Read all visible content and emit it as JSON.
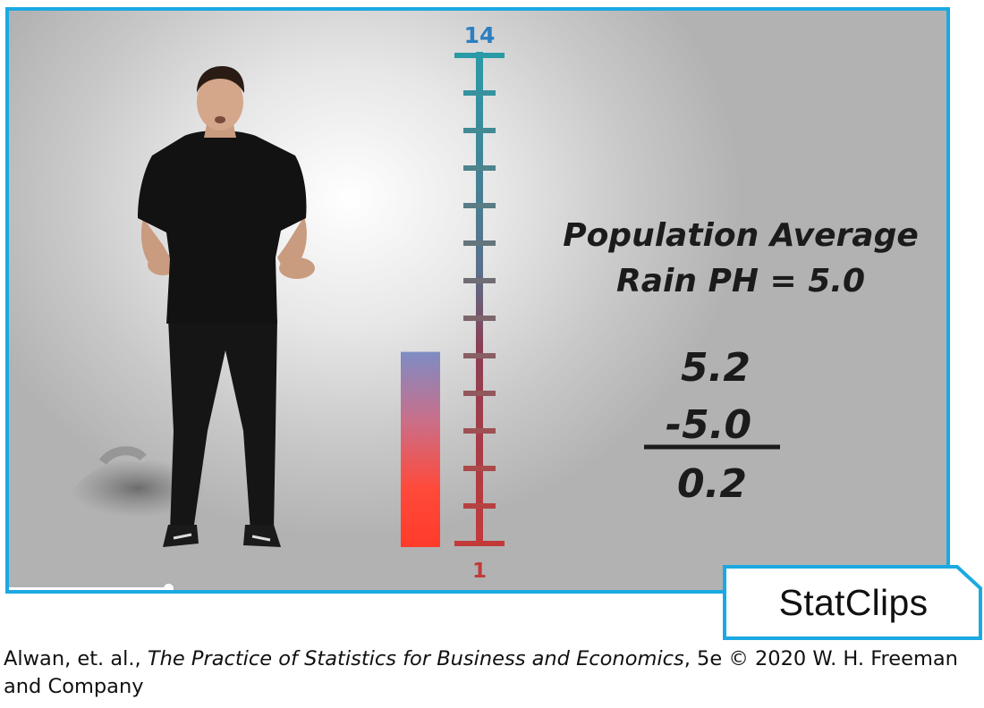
{
  "video": {
    "scale_top_label": "14",
    "scale_bottom_label": "1",
    "scale_min": 1,
    "scale_max": 14,
    "indicator_level": 0.5,
    "heading_line1": "Population Average",
    "heading_line2": "Rain PH = 5.0",
    "calc_value": "5.2",
    "calc_subtract": "-5.0",
    "calc_result": "0.2",
    "progress_fraction": 0.17
  },
  "badge": {
    "label": "StatClips"
  },
  "caption": {
    "authors": "Alwan, et. al., ",
    "book_title": "The Practice of Statistics for Business and Economics",
    "edition_copyright": ", 5e © 2020 W. H. Freeman and Company"
  },
  "colors": {
    "frame": "#1ba9e1",
    "scale_top": "#2a9aa6",
    "scale_bottom": "#c23a3a",
    "indicator_top": "#7d8cc4",
    "indicator_bottom": "#ff3b2a"
  },
  "icons": {
    "presenter": "person-figure",
    "thermometer": "ph-scale-thermometer"
  }
}
